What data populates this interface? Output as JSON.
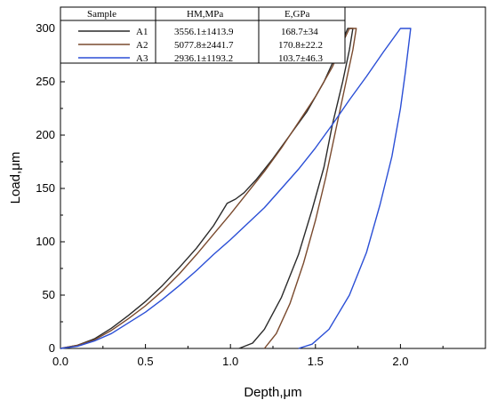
{
  "chart_data": {
    "type": "line",
    "xlabel": "Depth,μm",
    "ylabel": "Load,μm",
    "xlim": [
      0,
      2.5
    ],
    "ylim": [
      0,
      320
    ],
    "x_ticks": [
      "0.0",
      "0.5",
      "1.0",
      "1.5",
      "2.0"
    ],
    "y_ticks": [
      "0",
      "50",
      "100",
      "150",
      "200",
      "250",
      "300"
    ],
    "grid": false,
    "legend_table": {
      "headers": [
        "Sample",
        "HM,MPa",
        "E,GPa"
      ],
      "rows": [
        {
          "sample": "A1",
          "hm": "3556.1±1413.9",
          "e": "168.7±34"
        },
        {
          "sample": "A2",
          "hm": "5077.8±2441.7",
          "e": "170.8±22.2"
        },
        {
          "sample": "A3",
          "hm": "2936.1±1193.2",
          "e": "103.7±46.3"
        }
      ]
    },
    "series": [
      {
        "name": "A1",
        "color": "#2a2a2a",
        "points": [
          [
            0,
            0
          ],
          [
            0.1,
            3
          ],
          [
            0.2,
            9
          ],
          [
            0.3,
            19
          ],
          [
            0.4,
            31
          ],
          [
            0.5,
            44
          ],
          [
            0.6,
            59
          ],
          [
            0.7,
            76
          ],
          [
            0.8,
            94
          ],
          [
            0.9,
            115
          ],
          [
            0.95,
            128
          ],
          [
            0.98,
            136
          ],
          [
            1.03,
            140
          ],
          [
            1.08,
            146
          ],
          [
            1.15,
            158
          ],
          [
            1.25,
            178
          ],
          [
            1.35,
            200
          ],
          [
            1.45,
            222
          ],
          [
            1.55,
            250
          ],
          [
            1.65,
            285
          ],
          [
            1.69,
            300
          ],
          [
            1.72,
            300
          ],
          [
            1.7,
            280
          ],
          [
            1.66,
            250
          ],
          [
            1.6,
            210
          ],
          [
            1.55,
            170
          ],
          [
            1.48,
            130
          ],
          [
            1.4,
            88
          ],
          [
            1.3,
            48
          ],
          [
            1.2,
            18
          ],
          [
            1.13,
            5
          ],
          [
            1.05,
            0
          ]
        ]
      },
      {
        "name": "A2",
        "color": "#7a4a2e",
        "points": [
          [
            0,
            0
          ],
          [
            0.1,
            3
          ],
          [
            0.2,
            8
          ],
          [
            0.3,
            17
          ],
          [
            0.4,
            28
          ],
          [
            0.5,
            40
          ],
          [
            0.6,
            54
          ],
          [
            0.7,
            70
          ],
          [
            0.8,
            88
          ],
          [
            0.9,
            107
          ],
          [
            1.0,
            126
          ],
          [
            1.1,
            146
          ],
          [
            1.2,
            166
          ],
          [
            1.3,
            188
          ],
          [
            1.4,
            212
          ],
          [
            1.5,
            236
          ],
          [
            1.6,
            264
          ],
          [
            1.67,
            290
          ],
          [
            1.7,
            300
          ],
          [
            1.74,
            300
          ],
          [
            1.72,
            280
          ],
          [
            1.68,
            250
          ],
          [
            1.62,
            205
          ],
          [
            1.56,
            160
          ],
          [
            1.5,
            120
          ],
          [
            1.43,
            80
          ],
          [
            1.35,
            42
          ],
          [
            1.27,
            14
          ],
          [
            1.2,
            0
          ]
        ]
      },
      {
        "name": "A3",
        "color": "#2b4fd6",
        "points": [
          [
            0,
            0
          ],
          [
            0.1,
            2
          ],
          [
            0.2,
            7
          ],
          [
            0.3,
            14
          ],
          [
            0.4,
            24
          ],
          [
            0.5,
            34
          ],
          [
            0.6,
            46
          ],
          [
            0.7,
            59
          ],
          [
            0.8,
            73
          ],
          [
            0.9,
            88
          ],
          [
            1.0,
            102
          ],
          [
            1.1,
            117
          ],
          [
            1.2,
            132
          ],
          [
            1.3,
            150
          ],
          [
            1.4,
            168
          ],
          [
            1.5,
            188
          ],
          [
            1.6,
            210
          ],
          [
            1.7,
            233
          ],
          [
            1.8,
            255
          ],
          [
            1.9,
            278
          ],
          [
            2.0,
            300
          ],
          [
            2.06,
            300
          ],
          [
            2.03,
            260
          ],
          [
            2.0,
            225
          ],
          [
            1.95,
            180
          ],
          [
            1.88,
            135
          ],
          [
            1.8,
            90
          ],
          [
            1.7,
            50
          ],
          [
            1.58,
            18
          ],
          [
            1.48,
            4
          ],
          [
            1.4,
            0
          ]
        ]
      }
    ]
  }
}
